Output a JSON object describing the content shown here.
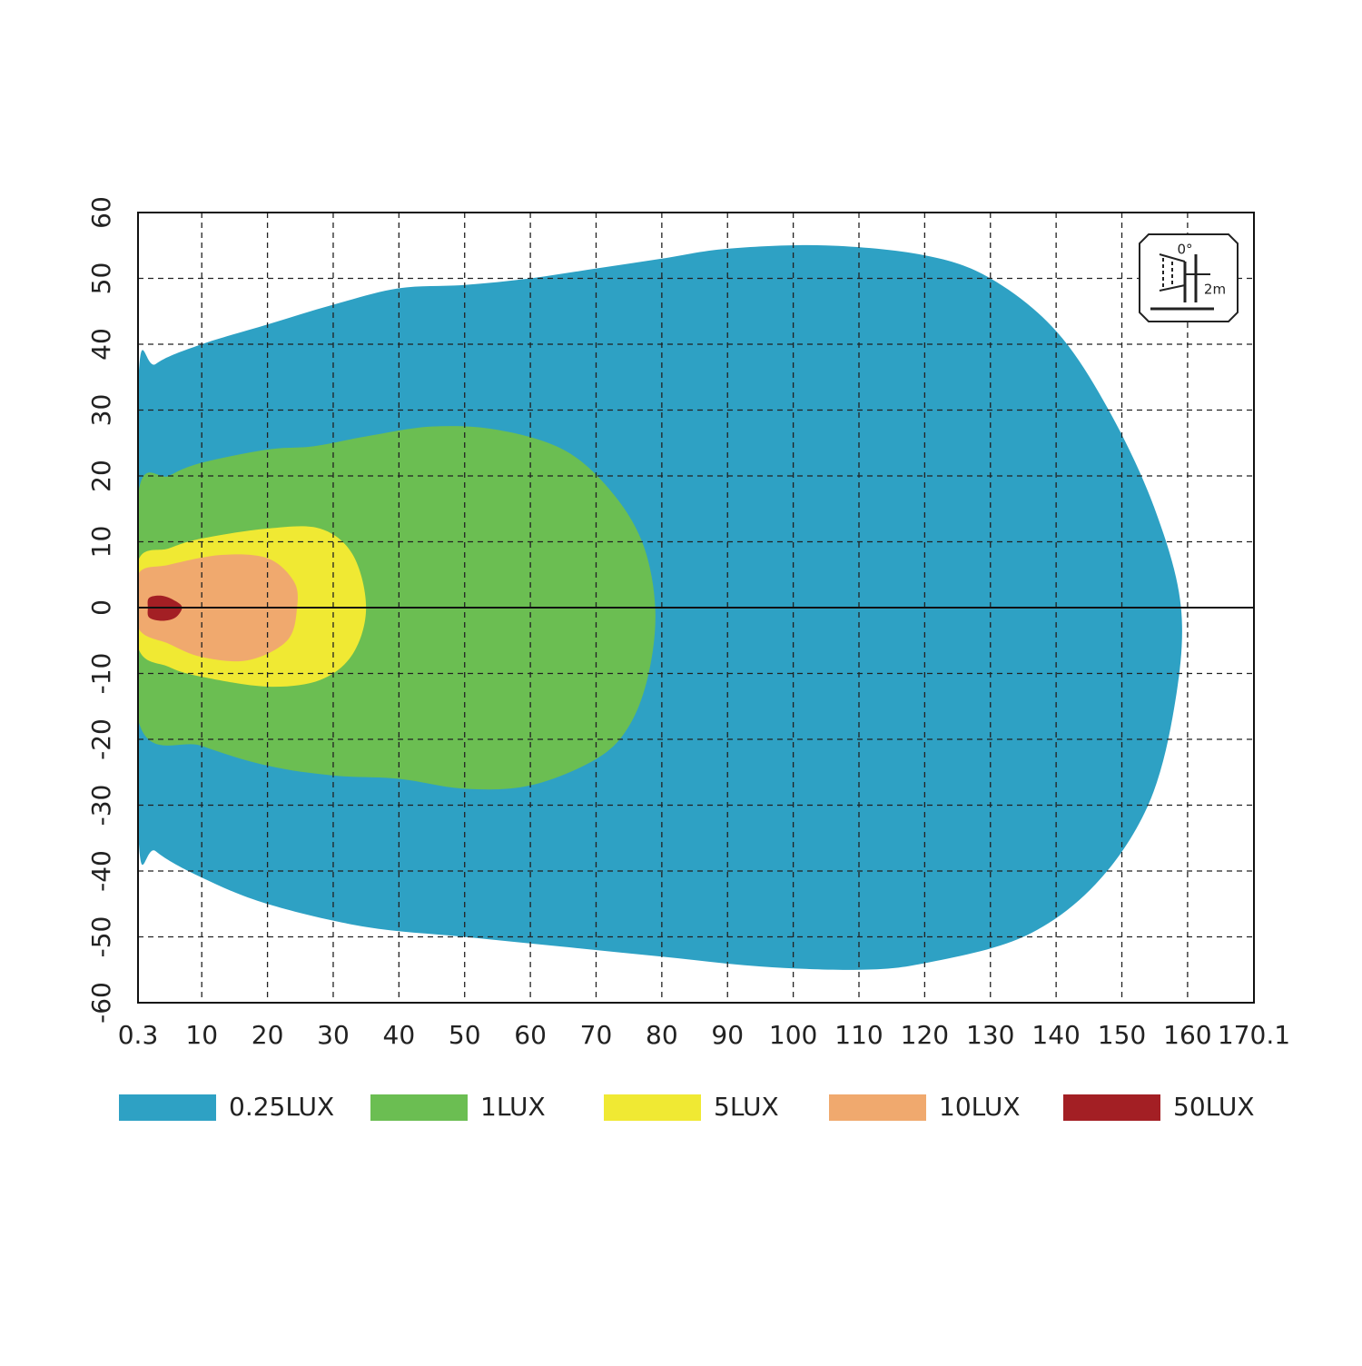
{
  "chart_data": {
    "type": "contour",
    "xlim": [
      0.3,
      170.1
    ],
    "xticks": [
      0.3,
      10,
      20,
      30,
      40,
      50,
      60,
      70,
      80,
      90,
      100,
      110,
      120,
      130,
      140,
      150,
      160,
      170.1
    ],
    "ylim": [
      -60,
      60
    ],
    "yticks": [
      -60,
      -50,
      -40,
      -30,
      -20,
      -10,
      0,
      10,
      20,
      30,
      40,
      50,
      60
    ],
    "grid": true,
    "legend": "bottom",
    "icon": {
      "angle": "0°",
      "distance": "2m"
    },
    "series": [
      {
        "name": "0.25LUX",
        "color": "#2ea1c4",
        "x": [
          0.3,
          3,
          10,
          20,
          30,
          40,
          50,
          60,
          70,
          80,
          90,
          105,
          120,
          130,
          140,
          148,
          155,
          159,
          158,
          154,
          146,
          135,
          120,
          110,
          95,
          80,
          65,
          50,
          35,
          20,
          10,
          3,
          0.3
        ],
        "y": [
          33,
          37,
          40,
          43,
          46,
          48.5,
          49,
          50,
          51.5,
          53,
          54.5,
          55,
          53.5,
          50,
          42,
          30,
          15,
          0,
          -15,
          -30,
          -42,
          -50,
          -54,
          -55,
          -54.5,
          -53,
          -51.5,
          -50,
          -48.5,
          -45,
          -41,
          -37,
          -33
        ]
      },
      {
        "name": "1LUX",
        "color": "#6bbe52",
        "x": [
          0.3,
          5,
          10,
          20,
          27,
          35,
          45,
          55,
          65,
          72,
          77,
          79,
          78,
          75,
          70,
          60,
          50,
          40,
          30,
          20,
          10,
          0.3
        ],
        "y": [
          17,
          20,
          22,
          24,
          24.5,
          26,
          27.5,
          27,
          24,
          18,
          10,
          0,
          -10,
          -18,
          -23,
          -27,
          -27.5,
          -26,
          -25.5,
          -24,
          -21,
          -17
        ]
      },
      {
        "name": "5LUX",
        "color": "#f0e933",
        "x": [
          0.3,
          5,
          10,
          20,
          28,
          33,
          35,
          33,
          28,
          20,
          10,
          5,
          0.3
        ],
        "y": [
          7,
          9,
          10.5,
          12,
          12,
          8,
          0,
          -7,
          -11,
          -12,
          -10.5,
          -9,
          -6
        ]
      },
      {
        "name": "10LUX",
        "color": "#f0a96e",
        "x": [
          0.3,
          5,
          13,
          20,
          24,
          24.5,
          23,
          17,
          10,
          5,
          0.3
        ],
        "y": [
          5,
          6.5,
          8,
          7.5,
          4,
          0,
          -5,
          -8,
          -7.5,
          -5.5,
          -3
        ]
      },
      {
        "name": "50LUX",
        "color": "#a31f24",
        "x": [
          2,
          4,
          6,
          7,
          6,
          4,
          2,
          1.8
        ],
        "y": [
          1.5,
          1.8,
          1,
          0,
          -1.5,
          -2,
          -1.5,
          0
        ]
      }
    ]
  }
}
